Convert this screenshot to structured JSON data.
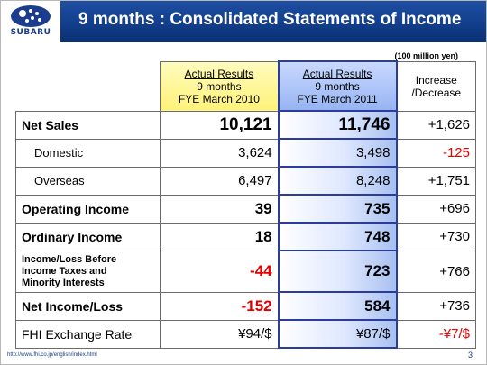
{
  "header": {
    "logo_text": "SUBARU",
    "title": "9 months : Consolidated Statements of Income"
  },
  "unit_note": "(100 million yen)",
  "columns": {
    "col_2010": {
      "line1": "Actual Results",
      "line2": "9 months",
      "line3": "FYE March 2010"
    },
    "col_2011": {
      "line1": "Actual Results",
      "line2": "9 months",
      "line3": "FYE March 2011"
    },
    "col_change": {
      "line1": "Increase",
      "line2": "/Decrease"
    }
  },
  "rows": [
    {
      "label": "Net Sales",
      "v2010": "10,121",
      "v2011": "11,746",
      "change": "+1,626"
    },
    {
      "label": "Domestic",
      "v2010": "3,624",
      "v2011": "3,498",
      "change": "-125"
    },
    {
      "label": "Overseas",
      "v2010": "6,497",
      "v2011": "8,248",
      "change": "+1,751"
    },
    {
      "label": "Operating Income",
      "v2010": "39",
      "v2011": "735",
      "change": "+696"
    },
    {
      "label": "Ordinary Income",
      "v2010": "18",
      "v2011": "748",
      "change": "+730"
    },
    {
      "label_line1": "Income/Loss Before",
      "label_line2": "Income Taxes and",
      "label_line3": "Minority Interests",
      "v2010": "-44",
      "v2011": "723",
      "change": "+766"
    },
    {
      "label": "Net Income/Loss",
      "v2010": "-152",
      "v2011": "584",
      "change": "+736"
    },
    {
      "label": "FHI Exchange Rate",
      "v2010": "¥94/$",
      "v2011": "¥87/$",
      "change": "-¥7/$"
    }
  ],
  "footer": {
    "url": "http://www.fhi.co.jp/english/index.html",
    "page_number": "3"
  }
}
